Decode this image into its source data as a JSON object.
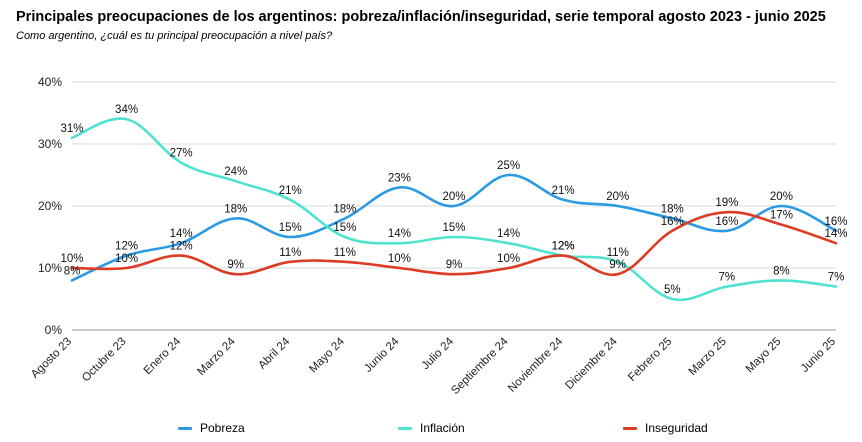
{
  "title": "Principales preocupaciones de los argentinos: pobreza/inflación/inseguridad, serie temporal agosto 2023 - junio 2025",
  "subtitle": "Como argentino, ¿cuál es tu principal preocupación a nivel país?",
  "chart_data": {
    "type": "line",
    "title": "Principales preocupaciones de los argentinos: pobreza/inflación/inseguridad, serie temporal agosto 2023 - junio 2025",
    "subtitle": "Como argentino, ¿cuál es tu principal preocupación a nivel país?",
    "categories": [
      "Agosto 23",
      "Octubre 23",
      "Enero 24",
      "Marzo 24",
      "Abril 24",
      "Mayo 24",
      "Junio 24",
      "Julio 24",
      "Septiembre 24",
      "Noviembre 24",
      "Diciembre 24",
      "Febrero 25",
      "Marzo 25",
      "Mayo 25",
      "Junio 25"
    ],
    "y_ticks": [
      "0%",
      "10%",
      "20%",
      "30%",
      "40%"
    ],
    "ylim": [
      0,
      40
    ],
    "grid": true,
    "legend_position": "bottom",
    "series": [
      {
        "name": "Pobreza",
        "color": "#2b9ae3",
        "values": [
          8,
          12,
          14,
          18,
          15,
          18,
          23,
          20,
          25,
          21,
          20,
          18,
          16,
          20,
          16
        ]
      },
      {
        "name": "Inflación",
        "color": "#4fe3cf",
        "values": [
          31,
          34,
          27,
          24,
          21,
          15,
          14,
          15,
          14,
          12,
          11,
          5,
          7,
          8,
          7
        ]
      },
      {
        "name": "Inseguridad",
        "color": "#de3b25",
        "values": [
          10,
          10,
          12,
          9,
          11,
          11,
          10,
          9,
          10,
          12,
          9,
          16,
          19,
          17,
          14
        ]
      }
    ]
  }
}
